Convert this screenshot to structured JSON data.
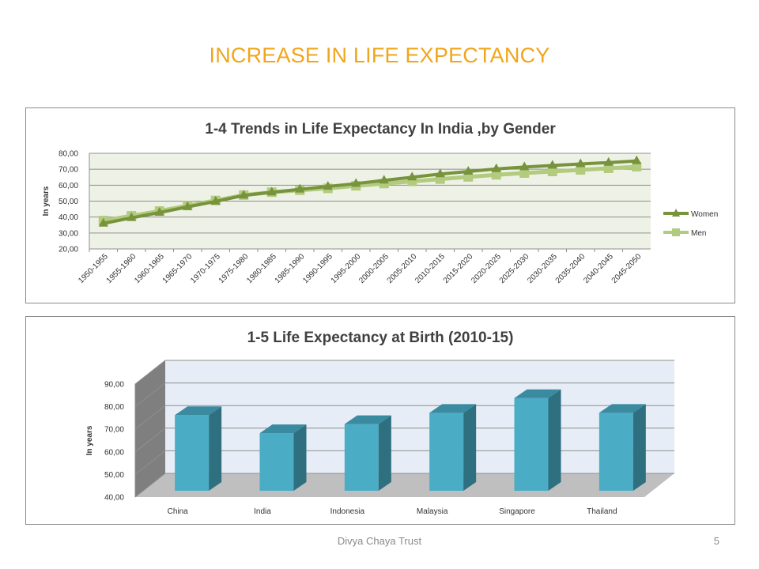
{
  "slide": {
    "title": "INCREASE IN LIFE EXPECTANCY",
    "footer": "Divya Chaya Trust",
    "page_number": "5"
  },
  "colors": {
    "title": "#F2A51A",
    "women": "#77933C",
    "men": "#B3CB7E",
    "plot_bg1": "#EEF2E6",
    "bar_front": "#4BACC6",
    "bar_side": "#2E6F80",
    "bar_top": "#3A8AA0",
    "wall": "#E6EDF6",
    "floor": "#BFBFBF"
  },
  "chart_data": [
    {
      "type": "line",
      "title": "1-4 Trends in Life Expectancy In India ,by Gender",
      "ylabel": "In years",
      "xlabel": "",
      "ylim": [
        20,
        80
      ],
      "yticks": [
        "20,00",
        "30,00",
        "40,00",
        "50,00",
        "60,00",
        "70,00",
        "80,00"
      ],
      "grid": true,
      "legend": "right",
      "categories": [
        "1950-1955",
        "1955-1960",
        "1960-1965",
        "1965-1970",
        "1970-1975",
        "1975-1980",
        "1980-1985",
        "1985-1990",
        "1990-1995",
        "1995-2000",
        "2000-2005",
        "2005-2010",
        "2010-2015",
        "2015-2020",
        "2020-2025",
        "2025-2030",
        "2030-2035",
        "2035-2040",
        "2040-2045",
        "2045-2050"
      ],
      "series": [
        {
          "name": "Women",
          "marker": "triangle",
          "values": [
            36.0,
            39.5,
            42.8,
            46.4,
            49.8,
            53.6,
            55.6,
            57.4,
            59.2,
            61.0,
            63.0,
            65.0,
            67.0,
            68.6,
            70.2,
            71.4,
            72.4,
            73.3,
            74.2,
            75.2
          ]
        },
        {
          "name": "Men",
          "marker": "square",
          "values": [
            37.8,
            40.8,
            43.8,
            47.2,
            50.4,
            53.8,
            55.6,
            56.8,
            58.0,
            59.6,
            61.0,
            62.4,
            63.8,
            65.2,
            66.5,
            67.6,
            68.6,
            69.6,
            70.6,
            71.6
          ]
        }
      ]
    },
    {
      "type": "bar",
      "title": "1-5 Life Expectancy at Birth (2010-15)",
      "ylabel": "In years",
      "xlabel": "",
      "ylim": [
        40,
        90
      ],
      "yticks": [
        "40,00",
        "50,00",
        "60,00",
        "70,00",
        "80,00",
        "90,00"
      ],
      "grid": true,
      "legend": "none",
      "categories": [
        "China",
        "India",
        "Indonesia",
        "Malaysia",
        "Singapore",
        "Thailand"
      ],
      "values": [
        73.5,
        65.5,
        69.5,
        74.5,
        81.0,
        74.5
      ]
    }
  ]
}
